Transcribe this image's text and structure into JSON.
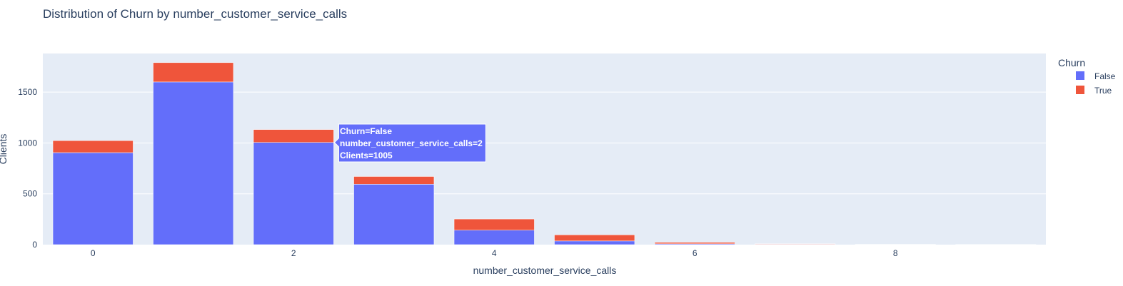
{
  "colors": {
    "plot_bg": "#e5ecf6",
    "grid": "#ffffff",
    "false_series": "#636efa",
    "true_series": "#ef553b",
    "text": "#2a3f5f"
  },
  "chart_data": {
    "type": "bar",
    "barmode": "stack",
    "title": "Distribution of Churn by number_customer_service_calls",
    "xlabel": "number_customer_service_calls",
    "ylabel": "Clients",
    "x": [
      0,
      1,
      2,
      3,
      4,
      5,
      6,
      7,
      8,
      9
    ],
    "xticks": [
      "0",
      "2",
      "4",
      "6",
      "8"
    ],
    "yticks": [
      "0",
      "500",
      "1000",
      "1500"
    ],
    "ylim": [
      0,
      1880
    ],
    "grid": true,
    "legend": {
      "title": "Churn",
      "placement": "top-right"
    },
    "series": [
      {
        "name": "False",
        "color": "#636efa",
        "values": [
          905,
          1600,
          1005,
          594,
          142,
          36,
          8,
          4,
          1,
          0
        ]
      },
      {
        "name": "True",
        "color": "#ef553b",
        "values": [
          118,
          190,
          127,
          76,
          110,
          60,
          14,
          5,
          2,
          2
        ]
      }
    ],
    "hover": {
      "category": 2,
      "series": "False",
      "lines": [
        "Churn=False",
        "number_customer_service_calls=2",
        "Clients=1005"
      ]
    }
  }
}
